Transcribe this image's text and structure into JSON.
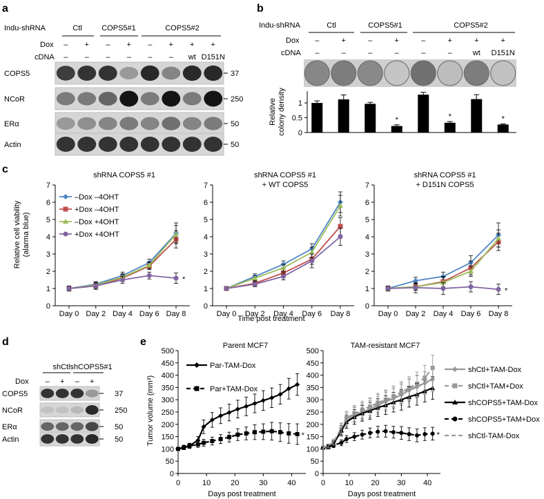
{
  "panel_letters": [
    "a",
    "b",
    "c",
    "d",
    "e"
  ],
  "panel_a": {
    "row_labels": [
      "Indu-shRNA",
      "Dox",
      "cDNA"
    ],
    "groups": [
      "Ctl",
      "COPS5#1",
      "COPS5#2"
    ],
    "dox": [
      "–",
      "+",
      "–",
      "+",
      "–",
      "+",
      "+",
      "+"
    ],
    "cdna": [
      "–",
      "–",
      "–",
      "–",
      "–",
      "–",
      "wt",
      "D151N"
    ],
    "blots": [
      {
        "name": "COPS5",
        "mw": "37",
        "bands": [
          0.8,
          0.85,
          0.85,
          0.35,
          0.9,
          0.45,
          0.9,
          0.9
        ]
      },
      {
        "name": "NCoR",
        "mw": "250",
        "bands": [
          0.5,
          0.5,
          0.6,
          1.0,
          0.5,
          1.0,
          0.5,
          1.0
        ]
      },
      {
        "name": "ERα",
        "mw": "50",
        "bands": [
          0.35,
          0.4,
          0.45,
          0.5,
          0.45,
          0.55,
          0.45,
          0.5
        ]
      },
      {
        "name": "Actin",
        "mw": "50",
        "bands": [
          0.85,
          0.85,
          0.85,
          0.85,
          0.85,
          0.85,
          0.85,
          0.85
        ]
      }
    ]
  },
  "panel_b": {
    "row_labels": [
      "Indu-shRNA",
      "Dox",
      "cDNA"
    ],
    "groups": [
      "Ctl",
      "COPS5#1",
      "COPS5#2"
    ],
    "dox": [
      "–",
      "+",
      "–",
      "+",
      "–",
      "+",
      "+",
      "+"
    ],
    "cdna": [
      "–",
      "–",
      "–",
      "–",
      "–",
      "–",
      "wt",
      "D151N"
    ],
    "ylabel": "Relative colony density",
    "yticks": [
      "0",
      "0.5",
      "1"
    ],
    "star": "*",
    "chart_data": {
      "type": "bar",
      "values": [
        1.0,
        1.12,
        0.97,
        0.22,
        1.28,
        0.33,
        1.13,
        0.27
      ],
      "errors": [
        0.07,
        0.15,
        0.05,
        0.04,
        0.08,
        0.04,
        0.15,
        0.02
      ],
      "significant": [
        false,
        false,
        false,
        true,
        false,
        true,
        false,
        true
      ],
      "ylim": [
        0,
        1.4
      ]
    }
  },
  "panel_c": {
    "ylabel_line1": "Relative cell viability",
    "ylabel_line2": "(alarma blue)",
    "xlabel": "Time post treatment",
    "yticks": [
      "0",
      "1",
      "2",
      "3",
      "4",
      "5",
      "6",
      "7"
    ],
    "xticks": [
      "Day 0",
      "Day 2",
      "Day 4",
      "Day 6",
      "Day 8"
    ],
    "legend": [
      "–Dox –4OHT",
      "+Dox –4OHT",
      "–Dox +4OHT",
      "+Dox +4OHT"
    ],
    "colors": [
      "#4f86c6",
      "#c0504d",
      "#9bbb59",
      "#8064a2"
    ],
    "star": "*",
    "charts": [
      {
        "title_line1": "shRNA COPS5 #1",
        "title_line2": "",
        "chart_data": {
          "type": "line",
          "x": [
            0,
            2,
            4,
            6,
            8
          ],
          "ylim": [
            0,
            7
          ],
          "series": [
            {
              "values": [
                1.0,
                1.25,
                1.75,
                2.5,
                4.2
              ],
              "errors": [
                0.1,
                0.15,
                0.2,
                0.2,
                0.6
              ]
            },
            {
              "values": [
                1.0,
                1.15,
                1.6,
                2.3,
                3.85
              ],
              "errors": [
                0.1,
                0.15,
                0.2,
                0.2,
                0.5
              ]
            },
            {
              "values": [
                1.0,
                1.2,
                1.65,
                2.35,
                4.15
              ],
              "errors": [
                0.1,
                0.15,
                0.2,
                0.2,
                0.5
              ]
            },
            {
              "values": [
                1.0,
                1.15,
                1.5,
                1.75,
                1.6
              ],
              "errors": [
                0.15,
                0.2,
                0.2,
                0.2,
                0.3
              ]
            }
          ],
          "significant": [
            false,
            false,
            false,
            true
          ]
        }
      },
      {
        "title_line1": "shRNA COPS5 #1",
        "title_line2": "+ WT COPS5",
        "chart_data": {
          "type": "line",
          "x": [
            0,
            2,
            4,
            6,
            8
          ],
          "ylim": [
            0,
            7
          ],
          "series": [
            {
              "values": [
                1.0,
                1.7,
                2.4,
                3.3,
                6.0
              ],
              "errors": [
                0.1,
                0.15,
                0.2,
                0.3,
                0.6
              ]
            },
            {
              "values": [
                1.0,
                1.3,
                1.9,
                2.7,
                4.6
              ],
              "errors": [
                0.1,
                0.15,
                0.2,
                0.3,
                0.5
              ]
            },
            {
              "values": [
                1.0,
                1.6,
                2.2,
                3.1,
                5.8
              ],
              "errors": [
                0.1,
                0.15,
                0.2,
                0.3,
                0.6
              ]
            },
            {
              "values": [
                1.0,
                1.25,
                1.7,
                2.6,
                4.0
              ],
              "errors": [
                0.1,
                0.15,
                0.2,
                0.4,
                0.5
              ]
            }
          ],
          "significant": [
            false,
            false,
            false,
            false
          ]
        }
      },
      {
        "title_line1": "shRNA COPS5 #1",
        "title_line2": "+ D151N COPS5",
        "chart_data": {
          "type": "line",
          "x": [
            0,
            2,
            4,
            6,
            8
          ],
          "ylim": [
            0,
            7
          ],
          "series": [
            {
              "values": [
                1.0,
                1.45,
                1.7,
                2.5,
                4.1
              ],
              "errors": [
                0.1,
                0.2,
                0.25,
                0.4,
                0.7
              ]
            },
            {
              "values": [
                1.0,
                1.1,
                1.4,
                2.2,
                3.7
              ],
              "errors": [
                0.1,
                0.2,
                0.3,
                0.4,
                0.5
              ]
            },
            {
              "values": [
                1.0,
                1.1,
                1.35,
                2.0,
                3.9
              ],
              "errors": [
                0.1,
                0.2,
                0.3,
                0.3,
                0.5
              ]
            },
            {
              "values": [
                1.0,
                1.05,
                1.0,
                1.1,
                0.95
              ],
              "errors": [
                0.15,
                0.3,
                0.35,
                0.3,
                0.3
              ]
            }
          ],
          "significant": [
            false,
            false,
            false,
            true
          ]
        }
      }
    ]
  },
  "panel_d": {
    "groups": [
      "shCtl",
      "shCOPS5#1"
    ],
    "dox_label": "Dox",
    "dox": [
      "–",
      "+",
      "–",
      "+"
    ],
    "blots": [
      {
        "name": "COPS5",
        "mw": "37",
        "bands": [
          0.85,
          0.85,
          0.85,
          0.35
        ]
      },
      {
        "name": "NCoR",
        "mw": "250",
        "bands": [
          0.15,
          0.15,
          0.2,
          0.9
        ]
      },
      {
        "name": "ERα",
        "mw": "50",
        "bands": [
          0.6,
          0.6,
          0.6,
          0.75
        ]
      },
      {
        "name": "Actin",
        "mw": "50",
        "bands": [
          0.85,
          0.85,
          0.85,
          0.9
        ]
      }
    ]
  },
  "panel_e": {
    "ylabel": "Tumor volume (mm³)",
    "xlabel": "Days post treatment",
    "yticks": [
      "0",
      "50",
      "100",
      "150",
      "200",
      "250",
      "300",
      "350",
      "400",
      "450",
      "500"
    ],
    "xticks": [
      "0",
      "10",
      "20",
      "30",
      "40"
    ],
    "star": "*",
    "charts": [
      {
        "title": "Parent MCF7",
        "legend": [
          "Par-TAM-Dox",
          "Par+TAM-Dox"
        ],
        "chart_data": {
          "type": "line",
          "ylim": [
            0,
            500
          ],
          "xlim": [
            0,
            45
          ],
          "series": [
            {
              "name": "Par-TAM-Dox",
              "color": "#000000",
              "dash": false,
              "marker": "diamond",
              "x": [
                0,
                2,
                4,
                7,
                9,
                12,
                15,
                18,
                21,
                24,
                27,
                30,
                33,
                36,
                39,
                42
              ],
              "values": [
                100,
                107,
                113,
                135,
                190,
                218,
                235,
                248,
                262,
                273,
                285,
                297,
                308,
                322,
                345,
                362
              ],
              "errors": [
                6,
                8,
                10,
                15,
                28,
                30,
                32,
                34,
                36,
                38,
                38,
                40,
                40,
                40,
                42,
                44
              ]
            },
            {
              "name": "Par+TAM-Dox",
              "color": "#000000",
              "dash": true,
              "marker": "square",
              "x": [
                0,
                2,
                4,
                7,
                9,
                12,
                15,
                18,
                21,
                24,
                27,
                30,
                33,
                36,
                39,
                42
              ],
              "values": [
                100,
                105,
                112,
                118,
                125,
                132,
                140,
                148,
                158,
                163,
                168,
                170,
                172,
                168,
                163,
                160
              ],
              "errors": [
                6,
                8,
                10,
                12,
                14,
                16,
                18,
                20,
                24,
                26,
                30,
                32,
                36,
                38,
                40,
                42
              ]
            }
          ],
          "significant": [
            false,
            true
          ]
        }
      },
      {
        "title": "TAM-resistant MCF7",
        "legend": [
          "shCtl+TAM-Dox",
          "shCtl+TAM+Dox",
          "shCOPS5+TAM-Dox",
          "shCOPS5+TAM+Dox",
          "shCtl-TAM-Dox"
        ],
        "chart_data": {
          "type": "line",
          "ylim": [
            0,
            500
          ],
          "xlim": [
            0,
            45
          ],
          "series": [
            {
              "name": "shCtl+TAM-Dox",
              "color": "#9a9a9a",
              "dash": false,
              "marker": "diamond",
              "x": [
                0,
                2,
                4,
                7,
                9,
                12,
                15,
                18,
                21,
                24,
                27,
                30,
                33,
                36,
                39,
                42
              ],
              "values": [
                105,
                112,
                125,
                170,
                215,
                238,
                250,
                262,
                278,
                292,
                305,
                320,
                338,
                352,
                368,
                385
              ],
              "errors": [
                6,
                8,
                12,
                20,
                26,
                30,
                32,
                34,
                36,
                38,
                40,
                42,
                44,
                45,
                46,
                48
              ]
            },
            {
              "name": "shCtl+TAM+Dox",
              "color": "#9a9a9a",
              "dash": true,
              "marker": "square",
              "x": [
                0,
                2,
                4,
                7,
                9,
                12,
                15,
                18,
                21,
                24,
                27,
                30,
                33,
                36,
                39,
                42
              ],
              "values": [
                105,
                110,
                122,
                180,
                225,
                245,
                260,
                272,
                288,
                300,
                315,
                330,
                348,
                365,
                390,
                430
              ],
              "errors": [
                6,
                8,
                12,
                22,
                28,
                32,
                34,
                36,
                38,
                40,
                42,
                44,
                46,
                48,
                50,
                52
              ]
            },
            {
              "name": "shCOPS5+TAM-Dox",
              "color": "#000000",
              "dash": false,
              "marker": "triangle",
              "x": [
                0,
                2,
                4,
                7,
                9,
                12,
                15,
                18,
                21,
                24,
                27,
                30,
                33,
                36,
                39,
                42
              ],
              "values": [
                105,
                108,
                120,
                175,
                210,
                230,
                245,
                255,
                268,
                278,
                290,
                300,
                312,
                322,
                335,
                348
              ],
              "errors": [
                6,
                8,
                12,
                20,
                26,
                30,
                32,
                34,
                36,
                38,
                40,
                42,
                42,
                44,
                44,
                46
              ]
            },
            {
              "name": "shCOPS5+TAM+Dox",
              "color": "#000000",
              "dash": true,
              "marker": "circle",
              "x": [
                0,
                2,
                4,
                7,
                9,
                12,
                15,
                18,
                21,
                24,
                27,
                30,
                33,
                36,
                39,
                42
              ],
              "values": [
                105,
                108,
                115,
                125,
                140,
                150,
                158,
                165,
                170,
                172,
                168,
                165,
                160,
                155,
                160,
                162
              ],
              "errors": [
                6,
                8,
                10,
                12,
                14,
                16,
                18,
                20,
                22,
                24,
                24,
                26,
                26,
                26,
                26,
                26
              ]
            },
            {
              "name": "shCtl-TAM-Dox",
              "color": "#9a9a9a",
              "dash": true,
              "marker": "none",
              "x": [
                0,
                2,
                4,
                7,
                9,
                12,
                15,
                18,
                21,
                24,
                27,
                30,
                33,
                36,
                39,
                42
              ],
              "values": [
                105,
                112,
                128,
                185,
                222,
                242,
                256,
                270,
                285,
                298,
                310,
                326,
                342,
                355,
                368,
                380
              ],
              "errors": [
                6,
                8,
                12,
                20,
                26,
                30,
                32,
                34,
                36,
                38,
                40,
                42,
                44,
                45,
                46,
                48
              ]
            }
          ],
          "significant": [
            false,
            false,
            false,
            true,
            false
          ]
        }
      }
    ]
  }
}
